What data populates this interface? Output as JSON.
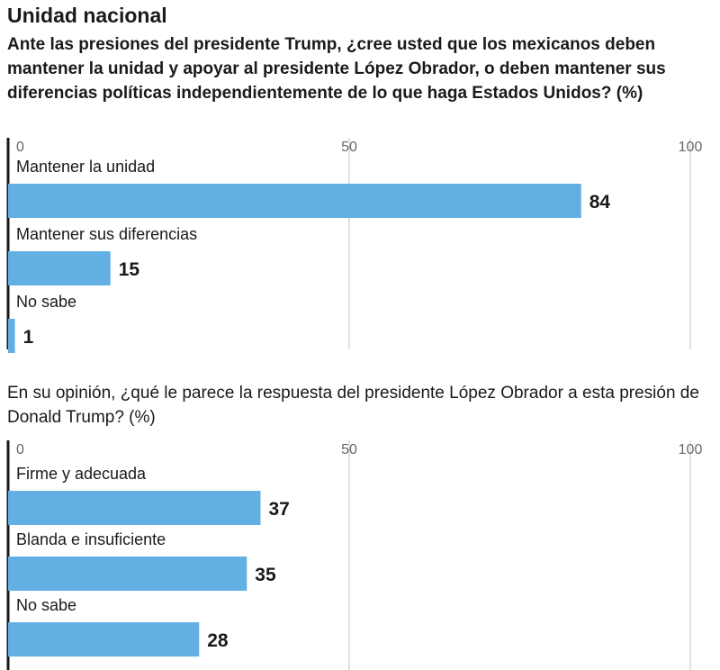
{
  "title": "Unidad nacional",
  "chart_data": [
    {
      "type": "bar",
      "title": "Ante las presiones del presidente Trump, ¿cree usted que los mexicanos deben mantener la unidad y apoyar al presidente López Obrador, o deben mantener sus diferencias políticas independientemente de lo que haga Estados Unidos? (%)",
      "categories": [
        "Mantener la unidad",
        "Mantener sus diferencias",
        "No sabe"
      ],
      "values": [
        84,
        15,
        1
      ],
      "xlim": [
        0,
        100
      ],
      "ticks": [
        0,
        50,
        100
      ],
      "orientation": "horizontal",
      "grid": true,
      "bar_color": "#62b0e3"
    },
    {
      "type": "bar",
      "title": "En su opinión, ¿qué le parece la respuesta del presidente López Obrador a esta presión de Donald Trump? (%)",
      "categories": [
        "Firme y adecuada",
        "Blanda e insuficiente",
        "No sabe"
      ],
      "values": [
        37,
        35,
        28
      ],
      "xlim": [
        0,
        100
      ],
      "ticks": [
        0,
        50,
        100
      ],
      "orientation": "horizontal",
      "grid": true,
      "bar_color": "#62b0e3"
    }
  ]
}
